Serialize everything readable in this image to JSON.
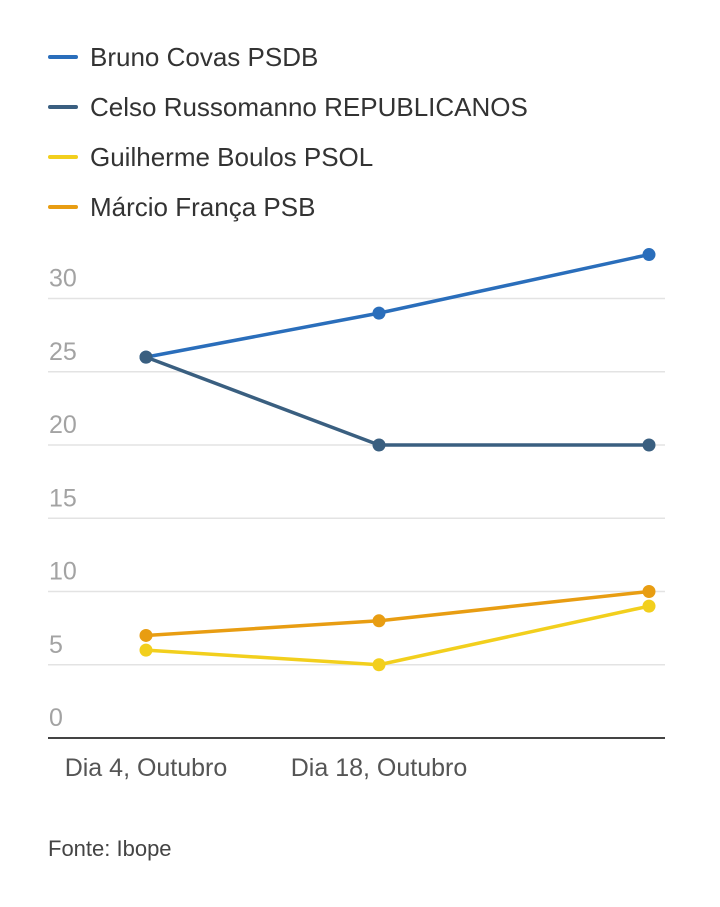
{
  "chart_data": {
    "type": "line",
    "title": "",
    "xlabel": "",
    "ylabel": "",
    "categories": [
      "Dia 4, Outubro",
      "Dia 18, Outubro",
      ""
    ],
    "ylim": [
      0,
      30
    ],
    "yticks": [
      "0",
      "5",
      "10",
      "15",
      "20",
      "25",
      "30"
    ],
    "grid": true,
    "legend_position": "top-left",
    "series": [
      {
        "name": "Bruno Covas PSDB",
        "color": "#2a6ebb",
        "values": [
          26,
          29,
          33
        ]
      },
      {
        "name": "Celso Russomanno REPUBLICANOS",
        "color": "#3a5f80",
        "values": [
          26,
          20,
          20
        ]
      },
      {
        "name": "Guilherme Boulos PSOL",
        "color": "#f2cf1d",
        "values": [
          6,
          5,
          9
        ]
      },
      {
        "name": "Márcio França PSB",
        "color": "#e89d12",
        "values": [
          7,
          8,
          10
        ]
      }
    ]
  },
  "source": "Fonte: Ibope"
}
